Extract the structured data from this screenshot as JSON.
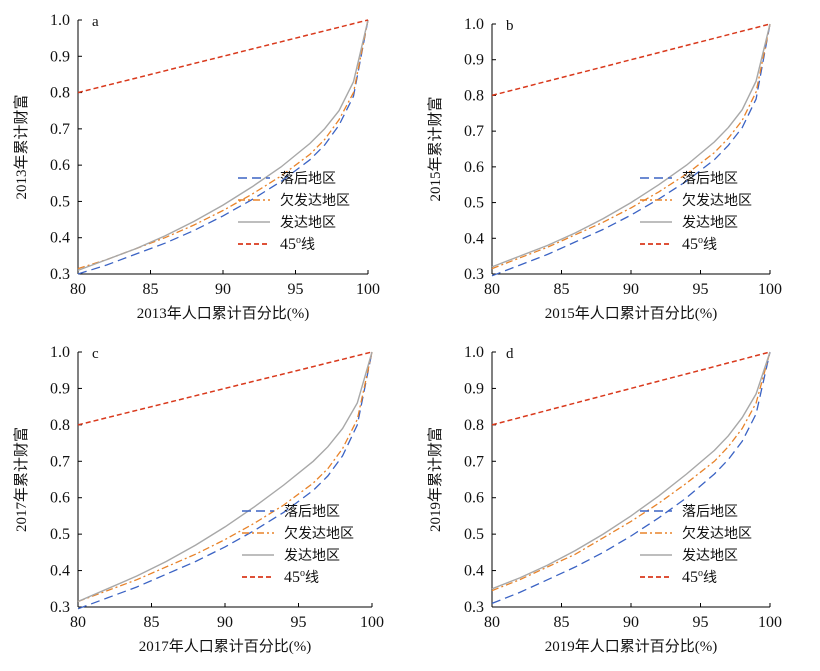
{
  "colors": {
    "backward": "#3b63c4",
    "underdeveloped": "#e8832a",
    "developed": "#a8a8a8",
    "equality": "#d9391c",
    "axis": "#000000"
  },
  "chart_data": [
    {
      "type": "line",
      "panel_letter": "a",
      "xlabel": "2013年人口累计百分比(%)",
      "ylabel": "2013年累计财富",
      "xlim": [
        80,
        100
      ],
      "ylim": [
        0.3,
        1.0
      ],
      "xticks": [
        "80",
        "85",
        "90",
        "95",
        "100"
      ],
      "yticks": [
        "0.3",
        "0.4",
        "0.5",
        "0.6",
        "0.7",
        "0.8",
        "0.9",
        "1.0"
      ],
      "legend_position": "bottom-right",
      "x": [
        80,
        82,
        84,
        86,
        88,
        90,
        92,
        94,
        96,
        97,
        98,
        99,
        100
      ],
      "series": [
        {
          "name": "落后地区",
          "values": [
            0.3,
            0.325,
            0.355,
            0.385,
            0.42,
            0.46,
            0.505,
            0.555,
            0.615,
            0.655,
            0.71,
            0.79,
            1.0
          ]
        },
        {
          "name": "欠发达地区",
          "values": [
            0.315,
            0.34,
            0.37,
            0.4,
            0.435,
            0.475,
            0.52,
            0.57,
            0.63,
            0.67,
            0.725,
            0.8,
            1.0
          ]
        },
        {
          "name": "发达地区",
          "values": [
            0.31,
            0.34,
            0.37,
            0.405,
            0.445,
            0.49,
            0.54,
            0.595,
            0.66,
            0.7,
            0.75,
            0.83,
            1.0
          ]
        },
        {
          "name_main": "45",
          "name_sup": "o",
          "name_tail": "线",
          "values": [
            0.8,
            0.82,
            0.84,
            0.86,
            0.88,
            0.9,
            0.92,
            0.94,
            0.96,
            0.97,
            0.98,
            0.99,
            1.0
          ]
        }
      ]
    },
    {
      "type": "line",
      "panel_letter": "b",
      "xlabel": "2015年人口累计百分比(%)",
      "ylabel": "2015年累计财富",
      "xlim": [
        80,
        100
      ],
      "ylim": [
        0.3,
        1.0
      ],
      "xticks": [
        "80",
        "85",
        "90",
        "95",
        "100"
      ],
      "yticks": [
        "0.3",
        "0.4",
        "0.5",
        "0.6",
        "0.7",
        "0.8",
        "0.9",
        "1.0"
      ],
      "legend_position": "bottom-right",
      "x": [
        80,
        82,
        84,
        86,
        88,
        90,
        92,
        94,
        96,
        97,
        98,
        99,
        100
      ],
      "series": [
        {
          "name": "落后地区",
          "values": [
            0.295,
            0.325,
            0.355,
            0.39,
            0.425,
            0.465,
            0.51,
            0.56,
            0.62,
            0.66,
            0.71,
            0.79,
            1.0
          ]
        },
        {
          "name": "欠发达地区",
          "values": [
            0.315,
            0.345,
            0.375,
            0.41,
            0.445,
            0.485,
            0.53,
            0.58,
            0.64,
            0.68,
            0.73,
            0.81,
            1.0
          ]
        },
        {
          "name": "发达地区",
          "values": [
            0.32,
            0.35,
            0.38,
            0.415,
            0.455,
            0.5,
            0.55,
            0.605,
            0.67,
            0.71,
            0.76,
            0.84,
            1.0
          ]
        },
        {
          "name_main": "45",
          "name_sup": "o",
          "name_tail": "线",
          "values": [
            0.8,
            0.82,
            0.84,
            0.86,
            0.88,
            0.9,
            0.92,
            0.94,
            0.96,
            0.97,
            0.98,
            0.99,
            1.0
          ]
        }
      ]
    },
    {
      "type": "line",
      "panel_letter": "c",
      "xlabel": "2017年人口累计百分比(%)",
      "ylabel": "2017年累计财富",
      "xlim": [
        80,
        100
      ],
      "ylim": [
        0.3,
        1.0
      ],
      "xticks": [
        "80",
        "85",
        "90",
        "95",
        "100"
      ],
      "yticks": [
        "0.3",
        "0.4",
        "0.5",
        "0.6",
        "0.7",
        "0.8",
        "0.9",
        "1.0"
      ],
      "legend_position": "bottom-right",
      "x": [
        80,
        82,
        84,
        86,
        88,
        90,
        92,
        94,
        96,
        97,
        98,
        99,
        100
      ],
      "series": [
        {
          "name": "落后地区",
          "values": [
            0.295,
            0.325,
            0.355,
            0.39,
            0.425,
            0.465,
            0.51,
            0.56,
            0.62,
            0.66,
            0.715,
            0.8,
            1.0
          ]
        },
        {
          "name": "欠发达地区",
          "values": [
            0.315,
            0.345,
            0.375,
            0.41,
            0.445,
            0.485,
            0.53,
            0.58,
            0.64,
            0.68,
            0.735,
            0.815,
            1.0
          ]
        },
        {
          "name": "发达地区",
          "values": [
            0.315,
            0.35,
            0.385,
            0.425,
            0.47,
            0.52,
            0.575,
            0.635,
            0.7,
            0.74,
            0.79,
            0.86,
            1.0
          ]
        },
        {
          "name_main": "45",
          "name_sup": "o",
          "name_tail": "线",
          "values": [
            0.8,
            0.82,
            0.84,
            0.86,
            0.88,
            0.9,
            0.92,
            0.94,
            0.96,
            0.97,
            0.98,
            0.99,
            1.0
          ]
        }
      ]
    },
    {
      "type": "line",
      "panel_letter": "d",
      "xlabel": "2019年人口累计百分比(%)",
      "ylabel": "2019年累计财富",
      "xlim": [
        80,
        100
      ],
      "ylim": [
        0.3,
        1.0
      ],
      "xticks": [
        "80",
        "85",
        "90",
        "95",
        "100"
      ],
      "yticks": [
        "0.3",
        "0.4",
        "0.5",
        "0.6",
        "0.7",
        "0.8",
        "0.9",
        "1.0"
      ],
      "legend_position": "bottom-right",
      "x": [
        80,
        82,
        84,
        86,
        88,
        90,
        92,
        94,
        96,
        97,
        98,
        99,
        100
      ],
      "series": [
        {
          "name": "落后地区",
          "values": [
            0.31,
            0.34,
            0.375,
            0.41,
            0.45,
            0.495,
            0.545,
            0.6,
            0.665,
            0.705,
            0.755,
            0.83,
            1.0
          ]
        },
        {
          "name": "欠发达地区",
          "values": [
            0.345,
            0.375,
            0.41,
            0.445,
            0.49,
            0.535,
            0.585,
            0.64,
            0.7,
            0.74,
            0.79,
            0.86,
            1.0
          ]
        },
        {
          "name": "发达地区",
          "values": [
            0.35,
            0.38,
            0.415,
            0.455,
            0.5,
            0.55,
            0.605,
            0.665,
            0.73,
            0.77,
            0.82,
            0.885,
            1.0
          ]
        },
        {
          "name_main": "45",
          "name_sup": "o",
          "name_tail": "线",
          "values": [
            0.8,
            0.82,
            0.84,
            0.86,
            0.88,
            0.9,
            0.92,
            0.94,
            0.96,
            0.97,
            0.98,
            0.99,
            1.0
          ]
        }
      ]
    }
  ]
}
